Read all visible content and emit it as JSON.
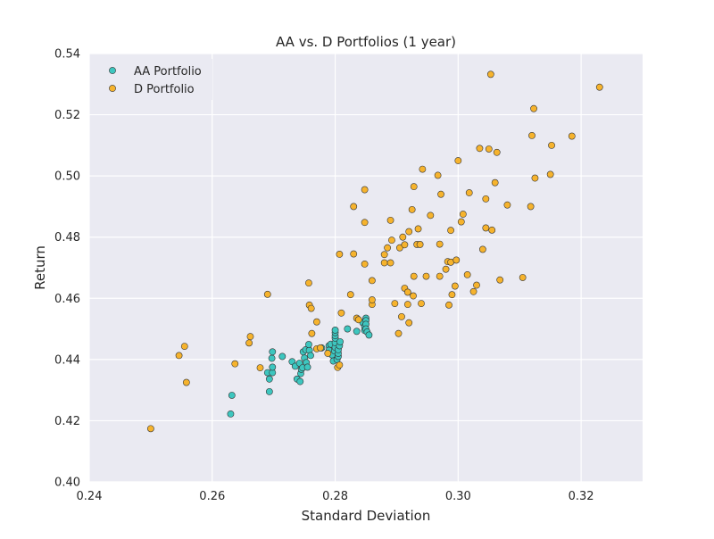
{
  "chart_data": {
    "type": "scatter",
    "title": "AA vs. D Portfolios (1 year)",
    "xlabel": "Standard Deviation",
    "ylabel": "Return",
    "xlim": [
      0.24,
      0.33
    ],
    "ylim": [
      0.4,
      0.54
    ],
    "xticks": [
      0.24,
      0.26,
      0.28,
      0.3,
      0.32
    ],
    "yticks": [
      0.4,
      0.42,
      0.44,
      0.46,
      0.48,
      0.5,
      0.52,
      0.54
    ],
    "xtick_labels": [
      "0.24",
      "0.26",
      "0.28",
      "0.30",
      "0.32"
    ],
    "ytick_labels": [
      "0.40",
      "0.42",
      "0.44",
      "0.46",
      "0.48",
      "0.50",
      "0.52",
      "0.54"
    ],
    "grid": true,
    "legend_position": "top-left",
    "background": "#eaeaf2",
    "series": [
      {
        "name": "AA Portfolio",
        "color": "#3dc6bf",
        "points": [
          [
            0.263,
            0.4222
          ],
          [
            0.2632,
            0.4283
          ],
          [
            0.2693,
            0.4295
          ],
          [
            0.2693,
            0.4336
          ],
          [
            0.269,
            0.4357
          ],
          [
            0.2698,
            0.4357
          ],
          [
            0.2698,
            0.4375
          ],
          [
            0.2697,
            0.4404
          ],
          [
            0.2698,
            0.4425
          ],
          [
            0.2714,
            0.441
          ],
          [
            0.273,
            0.4393
          ],
          [
            0.2735,
            0.4378
          ],
          [
            0.2738,
            0.4336
          ],
          [
            0.2743,
            0.4328
          ],
          [
            0.2744,
            0.4354
          ],
          [
            0.2745,
            0.4368
          ],
          [
            0.2742,
            0.4388
          ],
          [
            0.2747,
            0.4373
          ],
          [
            0.275,
            0.4405
          ],
          [
            0.2753,
            0.439
          ],
          [
            0.2755,
            0.4375
          ],
          [
            0.2748,
            0.4425
          ],
          [
            0.2752,
            0.4432
          ],
          [
            0.2758,
            0.443
          ],
          [
            0.2757,
            0.4449
          ],
          [
            0.276,
            0.4413
          ],
          [
            0.2778,
            0.4438
          ],
          [
            0.279,
            0.4445
          ],
          [
            0.279,
            0.443
          ],
          [
            0.2793,
            0.445
          ],
          [
            0.2795,
            0.4415
          ],
          [
            0.2797,
            0.4395
          ],
          [
            0.2799,
            0.4428
          ],
          [
            0.28,
            0.444
          ],
          [
            0.28,
            0.4455
          ],
          [
            0.28,
            0.447
          ],
          [
            0.28,
            0.4478
          ],
          [
            0.28,
            0.4488
          ],
          [
            0.28,
            0.4496
          ],
          [
            0.2803,
            0.44
          ],
          [
            0.2805,
            0.441
          ],
          [
            0.2805,
            0.442
          ],
          [
            0.2805,
            0.4432
          ],
          [
            0.2807,
            0.4445
          ],
          [
            0.2808,
            0.4458
          ],
          [
            0.282,
            0.45
          ],
          [
            0.2835,
            0.4492
          ],
          [
            0.2845,
            0.452
          ],
          [
            0.2848,
            0.4508
          ],
          [
            0.2848,
            0.4495
          ],
          [
            0.285,
            0.4535
          ],
          [
            0.285,
            0.4527
          ],
          [
            0.285,
            0.4515
          ],
          [
            0.285,
            0.45
          ],
          [
            0.2852,
            0.449
          ],
          [
            0.2855,
            0.448
          ]
        ]
      },
      {
        "name": "D Portfolio",
        "color": "#f6b32d",
        "points": [
          [
            0.25,
            0.4174
          ],
          [
            0.2546,
            0.4413
          ],
          [
            0.2555,
            0.4443
          ],
          [
            0.2558,
            0.4325
          ],
          [
            0.2637,
            0.4386
          ],
          [
            0.266,
            0.4454
          ],
          [
            0.2662,
            0.4475
          ],
          [
            0.2678,
            0.4373
          ],
          [
            0.269,
            0.4613
          ],
          [
            0.2757,
            0.465
          ],
          [
            0.2758,
            0.4578
          ],
          [
            0.2761,
            0.4567
          ],
          [
            0.2762,
            0.4485
          ],
          [
            0.277,
            0.4523
          ],
          [
            0.277,
            0.4435
          ],
          [
            0.2776,
            0.4438
          ],
          [
            0.2788,
            0.442
          ],
          [
            0.2804,
            0.4374
          ],
          [
            0.2807,
            0.4382
          ],
          [
            0.2807,
            0.4744
          ],
          [
            0.281,
            0.4552
          ],
          [
            0.2825,
            0.4612
          ],
          [
            0.283,
            0.4745
          ],
          [
            0.283,
            0.49
          ],
          [
            0.2835,
            0.4535
          ],
          [
            0.2838,
            0.453
          ],
          [
            0.2848,
            0.4712
          ],
          [
            0.2848,
            0.4848
          ],
          [
            0.2848,
            0.4955
          ],
          [
            0.286,
            0.458
          ],
          [
            0.286,
            0.4595
          ],
          [
            0.286,
            0.4658
          ],
          [
            0.288,
            0.4716
          ],
          [
            0.288,
            0.4743
          ],
          [
            0.2885,
            0.4765
          ],
          [
            0.289,
            0.4855
          ],
          [
            0.289,
            0.4716
          ],
          [
            0.2892,
            0.479
          ],
          [
            0.2897,
            0.4583
          ],
          [
            0.2903,
            0.4485
          ],
          [
            0.2905,
            0.4765
          ],
          [
            0.2908,
            0.454
          ],
          [
            0.291,
            0.48
          ],
          [
            0.2913,
            0.4775
          ],
          [
            0.2913,
            0.4633
          ],
          [
            0.2918,
            0.462
          ],
          [
            0.2918,
            0.458
          ],
          [
            0.292,
            0.452
          ],
          [
            0.292,
            0.4818
          ],
          [
            0.2925,
            0.489
          ],
          [
            0.2927,
            0.4608
          ],
          [
            0.2928,
            0.4672
          ],
          [
            0.2928,
            0.4965
          ],
          [
            0.2933,
            0.4776
          ],
          [
            0.2935,
            0.4827
          ],
          [
            0.2938,
            0.4776
          ],
          [
            0.294,
            0.4583
          ],
          [
            0.2942,
            0.5022
          ],
          [
            0.2948,
            0.4672
          ],
          [
            0.2955,
            0.4871
          ],
          [
            0.2967,
            0.5002
          ],
          [
            0.297,
            0.4777
          ],
          [
            0.297,
            0.4672
          ],
          [
            0.2972,
            0.494
          ],
          [
            0.298,
            0.4695
          ],
          [
            0.2983,
            0.472
          ],
          [
            0.2985,
            0.4578
          ],
          [
            0.2988,
            0.4718
          ],
          [
            0.2988,
            0.4822
          ],
          [
            0.299,
            0.4612
          ],
          [
            0.2995,
            0.464
          ],
          [
            0.2997,
            0.4725
          ],
          [
            0.3,
            0.505
          ],
          [
            0.3005,
            0.485
          ],
          [
            0.3008,
            0.4875
          ],
          [
            0.3015,
            0.4677
          ],
          [
            0.3018,
            0.4945
          ],
          [
            0.3025,
            0.4622
          ],
          [
            0.303,
            0.4643
          ],
          [
            0.3035,
            0.509
          ],
          [
            0.304,
            0.476
          ],
          [
            0.3045,
            0.483
          ],
          [
            0.3045,
            0.4925
          ],
          [
            0.305,
            0.5088
          ],
          [
            0.3053,
            0.5332
          ],
          [
            0.3055,
            0.4823
          ],
          [
            0.306,
            0.4978
          ],
          [
            0.3063,
            0.5077
          ],
          [
            0.3068,
            0.466
          ],
          [
            0.308,
            0.4905
          ],
          [
            0.3105,
            0.4668
          ],
          [
            0.3118,
            0.49
          ],
          [
            0.312,
            0.5132
          ],
          [
            0.3123,
            0.522
          ],
          [
            0.3125,
            0.4993
          ],
          [
            0.315,
            0.5005
          ],
          [
            0.3152,
            0.51
          ],
          [
            0.3185,
            0.513
          ],
          [
            0.323,
            0.529
          ]
        ]
      }
    ]
  }
}
